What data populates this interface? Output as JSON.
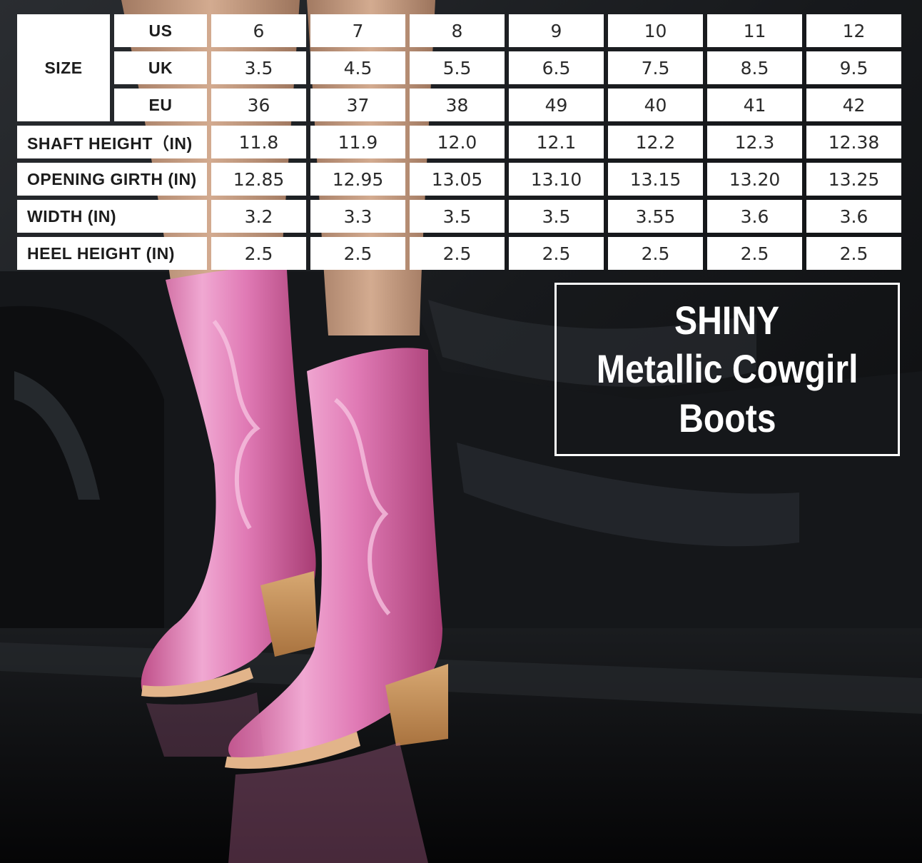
{
  "size_table": {
    "size_label": "SIZE",
    "systems": [
      {
        "label": "US",
        "values": [
          "6",
          "7",
          "8",
          "9",
          "10",
          "11",
          "12"
        ]
      },
      {
        "label": "UK",
        "values": [
          "3.5",
          "4.5",
          "5.5",
          "6.5",
          "7.5",
          "8.5",
          "9.5"
        ]
      },
      {
        "label": "EU",
        "values": [
          "36",
          "37",
          "38",
          "49",
          "40",
          "41",
          "42"
        ]
      }
    ],
    "measurements": [
      {
        "label": "SHAFT HEIGHT（IN)",
        "values": [
          "11.8",
          "11.9",
          "12.0",
          "12.1",
          "12.2",
          "12.3",
          "12.38"
        ]
      },
      {
        "label": "OPENING GIRTH (IN)",
        "values": [
          "12.85",
          "12.95",
          "13.05",
          "13.10",
          "13.15",
          "13.20",
          "13.25"
        ]
      },
      {
        "label": "WIDTH (IN)",
        "values": [
          "3.2",
          "3.3",
          "3.5",
          "3.5",
          "3.55",
          "3.6",
          "3.6"
        ]
      },
      {
        "label": "HEEL HEIGHT (IN)",
        "values": [
          "2.5",
          "2.5",
          "2.5",
          "2.5",
          "2.5",
          "2.5",
          "2.5"
        ]
      }
    ]
  },
  "title": {
    "line1": "SHINY",
    "line2": "Metallic Cowgirl",
    "line3": "Boots"
  },
  "colors": {
    "boot_pink": "#e58bc0",
    "boot_pink_dark": "#b8467f",
    "heel_wood": "#c8945e",
    "background": "#111214"
  }
}
